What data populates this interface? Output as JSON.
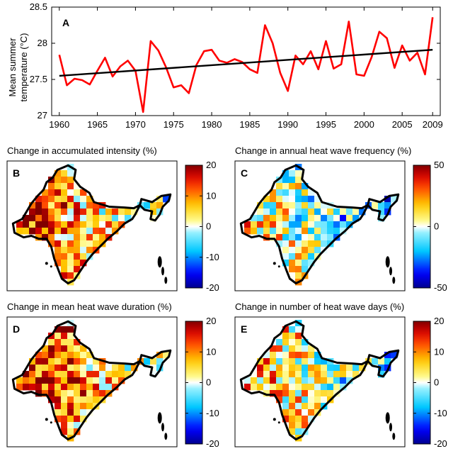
{
  "panel_a": {
    "letter": "A",
    "chart_data": {
      "type": "line",
      "title": "",
      "xlabel": "",
      "ylabel_line1": "Mean summer",
      "ylabel_line2": "temperature (°C)",
      "xlim": [
        1959,
        2010
      ],
      "ylim": [
        27,
        28.5
      ],
      "x_ticks": [
        "1960",
        "1965",
        "1970",
        "1975",
        "1980",
        "1985",
        "1990",
        "1995",
        "2000",
        "2005",
        "2009"
      ],
      "x_tick_values": [
        1960,
        1965,
        1970,
        1975,
        1980,
        1985,
        1990,
        1995,
        2000,
        2005,
        2009
      ],
      "y_ticks": [
        "27",
        "27.5",
        "28",
        "28.5"
      ],
      "y_tick_values": [
        27,
        27.5,
        28,
        28.5
      ],
      "series": [
        {
          "color": "#ff0000",
          "x": [
            1960,
            1961,
            1962,
            1963,
            1964,
            1965,
            1966,
            1967,
            1968,
            1969,
            1970,
            1971,
            1972,
            1973,
            1974,
            1975,
            1976,
            1977,
            1978,
            1979,
            1980,
            1981,
            1982,
            1983,
            1984,
            1985,
            1986,
            1987,
            1988,
            1989,
            1990,
            1991,
            1992,
            1993,
            1994,
            1995,
            1996,
            1997,
            1998,
            1999,
            2000,
            2001,
            2002,
            2003,
            2004,
            2005,
            2006,
            2007,
            2008,
            2009
          ],
          "values": [
            27.84,
            27.42,
            27.51,
            27.49,
            27.43,
            27.62,
            27.8,
            27.54,
            27.68,
            27.76,
            27.62,
            27.05,
            28.03,
            27.9,
            27.67,
            27.39,
            27.42,
            27.31,
            27.7,
            27.89,
            27.91,
            27.76,
            27.73,
            27.78,
            27.74,
            27.64,
            27.59,
            28.25,
            28.0,
            27.59,
            27.34,
            27.83,
            27.71,
            27.89,
            27.64,
            28.03,
            27.65,
            27.71,
            28.3,
            27.57,
            27.55,
            27.81,
            28.16,
            28.07,
            27.66,
            27.97,
            27.76,
            27.87,
            27.57,
            28.36
          ]
        },
        {
          "color": "#000000",
          "x": [
            1960,
            2009
          ],
          "values": [
            27.55,
            27.91
          ]
        }
      ]
    }
  },
  "maps": [
    {
      "letter": "B",
      "title": "Change in accumulated intensity (%)",
      "cb_ticks": [
        "20",
        "10",
        "0",
        "-10",
        "-20"
      ],
      "cb_tick_values": [
        20,
        10,
        0,
        -10,
        -20
      ],
      "cb_range": [
        -20,
        20
      ],
      "seed": 11,
      "bias": 0.6
    },
    {
      "letter": "C",
      "title": "Change in annual heat wave frequency (%)",
      "cb_ticks": [
        "50",
        "0",
        "-50"
      ],
      "cb_tick_values": [
        50,
        0,
        -50
      ],
      "cb_range": [
        -50,
        50
      ],
      "seed": 23,
      "bias": 0.1
    },
    {
      "letter": "D",
      "title": "Change in mean heat wave duration (%)",
      "cb_ticks": [
        "20",
        "10",
        "0",
        "-10",
        "-20"
      ],
      "cb_tick_values": [
        20,
        10,
        0,
        -10,
        -20
      ],
      "cb_range": [
        -20,
        20
      ],
      "seed": 37,
      "bias": 0.65
    },
    {
      "letter": "E",
      "title": "Change in number of heat wave days (%)",
      "cb_ticks": [
        "20",
        "10",
        "0",
        "-10",
        "-20"
      ],
      "cb_tick_values": [
        20,
        10,
        0,
        -10,
        -20
      ],
      "cb_range": [
        -20,
        20
      ],
      "seed": 53,
      "bias": 0.3
    }
  ],
  "colors": {
    "line": "#ff0000",
    "trend": "#000000",
    "axis": "#000000"
  }
}
